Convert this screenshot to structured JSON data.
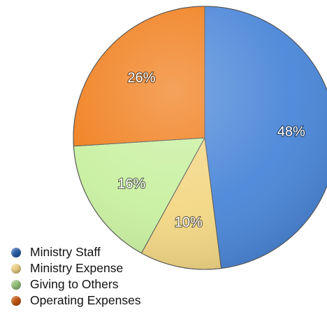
{
  "chart_data": {
    "type": "pie",
    "slices": [
      {
        "name": "Ministry Staff",
        "value": 48,
        "label": "48%",
        "color": "#4a86d8"
      },
      {
        "name": "Ministry Expense",
        "value": 10,
        "label": "10%",
        "color": "#f3d784"
      },
      {
        "name": "Giving to Others",
        "value": 16,
        "label": "16%",
        "color": "#c8f0a0"
      },
      {
        "name": "Operating Expenses",
        "value": 26,
        "label": "26%",
        "color": "#f07e1c"
      }
    ],
    "legend_position": "bottom-left",
    "start_angle_deg": 0,
    "direction": "clockwise"
  },
  "legend": {
    "items": [
      {
        "label": "Ministry Staff",
        "color": "#2a5ea8"
      },
      {
        "label": "Ministry Expense",
        "color": "#ecd084"
      },
      {
        "label": "Giving to Others",
        "color": "#94c27a"
      },
      {
        "label": "Operating Expenses",
        "color": "#c3560e"
      }
    ]
  }
}
